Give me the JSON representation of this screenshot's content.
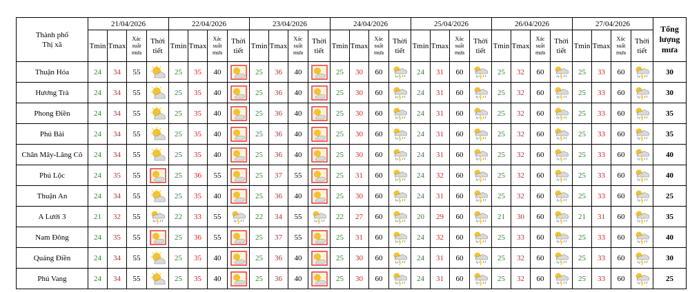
{
  "header": {
    "city_label_line1": "Thành phố",
    "city_label_line2": "Thị xã",
    "dates": [
      "21/04/2026",
      "22/04/2026",
      "23/04/2026",
      "24/04/2026",
      "25/04/2026",
      "26/04/2026",
      "27/04/2026"
    ],
    "tmin": "Tmin",
    "tmax": "Tmax",
    "prob_line1": "Xác",
    "prob_line2": "suất",
    "prob_line3": "mưa",
    "weather_line1": "Thời",
    "weather_line2": "tiết",
    "total_line1": "Tổng",
    "total_line2": "lượng",
    "total_line3": "mưa"
  },
  "colors": {
    "tmin": "#2e7d32",
    "tmax": "#c62828",
    "sun": "#f2c230",
    "cloud": "#d9d9d9",
    "hot": "#e53935"
  },
  "icon_names": {
    "sun-cloud": "partly-cloudy-icon",
    "hot": "hot-sun-icon",
    "storm": "thunderstorm-icon"
  },
  "rows": [
    {
      "city": "Thuận Hóa",
      "total": "30",
      "days": [
        {
          "tmin": "24",
          "tmax": "34",
          "prob": "55",
          "icon": "sun-cloud"
        },
        {
          "tmin": "25",
          "tmax": "35",
          "prob": "40",
          "icon": "hot"
        },
        {
          "tmin": "25",
          "tmax": "36",
          "prob": "40",
          "icon": "hot"
        },
        {
          "tmin": "25",
          "tmax": "30",
          "prob": "60",
          "icon": "storm"
        },
        {
          "tmin": "24",
          "tmax": "31",
          "prob": "60",
          "icon": "storm"
        },
        {
          "tmin": "25",
          "tmax": "32",
          "prob": "60",
          "icon": "storm"
        },
        {
          "tmin": "25",
          "tmax": "33",
          "prob": "60",
          "icon": "storm"
        }
      ]
    },
    {
      "city": "Hương Trà",
      "total": "30",
      "days": [
        {
          "tmin": "24",
          "tmax": "34",
          "prob": "55",
          "icon": "sun-cloud"
        },
        {
          "tmin": "25",
          "tmax": "35",
          "prob": "40",
          "icon": "hot"
        },
        {
          "tmin": "25",
          "tmax": "36",
          "prob": "40",
          "icon": "hot"
        },
        {
          "tmin": "25",
          "tmax": "30",
          "prob": "60",
          "icon": "storm"
        },
        {
          "tmin": "24",
          "tmax": "31",
          "prob": "60",
          "icon": "storm"
        },
        {
          "tmin": "25",
          "tmax": "32",
          "prob": "60",
          "icon": "storm"
        },
        {
          "tmin": "25",
          "tmax": "33",
          "prob": "60",
          "icon": "storm"
        }
      ]
    },
    {
      "city": "Phong Điền",
      "total": "35",
      "days": [
        {
          "tmin": "24",
          "tmax": "34",
          "prob": "55",
          "icon": "sun-cloud"
        },
        {
          "tmin": "25",
          "tmax": "35",
          "prob": "40",
          "icon": "hot"
        },
        {
          "tmin": "25",
          "tmax": "36",
          "prob": "40",
          "icon": "hot"
        },
        {
          "tmin": "25",
          "tmax": "30",
          "prob": "60",
          "icon": "storm"
        },
        {
          "tmin": "24",
          "tmax": "31",
          "prob": "60",
          "icon": "storm"
        },
        {
          "tmin": "25",
          "tmax": "32",
          "prob": "60",
          "icon": "storm"
        },
        {
          "tmin": "25",
          "tmax": "33",
          "prob": "60",
          "icon": "storm"
        }
      ]
    },
    {
      "city": "Phú Bài",
      "total": "35",
      "days": [
        {
          "tmin": "24",
          "tmax": "34",
          "prob": "55",
          "icon": "sun-cloud"
        },
        {
          "tmin": "25",
          "tmax": "35",
          "prob": "40",
          "icon": "hot"
        },
        {
          "tmin": "25",
          "tmax": "36",
          "prob": "40",
          "icon": "hot"
        },
        {
          "tmin": "25",
          "tmax": "30",
          "prob": "60",
          "icon": "storm"
        },
        {
          "tmin": "24",
          "tmax": "31",
          "prob": "60",
          "icon": "storm"
        },
        {
          "tmin": "25",
          "tmax": "32",
          "prob": "60",
          "icon": "storm"
        },
        {
          "tmin": "25",
          "tmax": "33",
          "prob": "60",
          "icon": "storm"
        }
      ]
    },
    {
      "city": "Chân Mây-Lăng Cô",
      "total": "40",
      "days": [
        {
          "tmin": "24",
          "tmax": "34",
          "prob": "55",
          "icon": "sun-cloud"
        },
        {
          "tmin": "25",
          "tmax": "35",
          "prob": "40",
          "icon": "hot"
        },
        {
          "tmin": "25",
          "tmax": "36",
          "prob": "40",
          "icon": "hot"
        },
        {
          "tmin": "25",
          "tmax": "30",
          "prob": "60",
          "icon": "storm"
        },
        {
          "tmin": "24",
          "tmax": "31",
          "prob": "60",
          "icon": "storm"
        },
        {
          "tmin": "25",
          "tmax": "32",
          "prob": "60",
          "icon": "storm"
        },
        {
          "tmin": "25",
          "tmax": "33",
          "prob": "60",
          "icon": "storm"
        }
      ]
    },
    {
      "city": "Phú Lộc",
      "total": "40",
      "days": [
        {
          "tmin": "24",
          "tmax": "35",
          "prob": "55",
          "icon": "hot"
        },
        {
          "tmin": "25",
          "tmax": "36",
          "prob": "55",
          "icon": "hot"
        },
        {
          "tmin": "25",
          "tmax": "37",
          "prob": "55",
          "icon": "hot"
        },
        {
          "tmin": "25",
          "tmax": "31",
          "prob": "60",
          "icon": "storm"
        },
        {
          "tmin": "24",
          "tmax": "32",
          "prob": "60",
          "icon": "storm"
        },
        {
          "tmin": "25",
          "tmax": "32",
          "prob": "60",
          "icon": "storm"
        },
        {
          "tmin": "25",
          "tmax": "33",
          "prob": "60",
          "icon": "storm"
        }
      ]
    },
    {
      "city": "Thuận An",
      "total": "25",
      "days": [
        {
          "tmin": "24",
          "tmax": "34",
          "prob": "55",
          "icon": "sun-cloud"
        },
        {
          "tmin": "25",
          "tmax": "35",
          "prob": "40",
          "icon": "hot"
        },
        {
          "tmin": "25",
          "tmax": "36",
          "prob": "40",
          "icon": "hot"
        },
        {
          "tmin": "25",
          "tmax": "30",
          "prob": "60",
          "icon": "storm"
        },
        {
          "tmin": "24",
          "tmax": "31",
          "prob": "60",
          "icon": "storm"
        },
        {
          "tmin": "25",
          "tmax": "32",
          "prob": "60",
          "icon": "storm"
        },
        {
          "tmin": "25",
          "tmax": "33",
          "prob": "60",
          "icon": "storm"
        }
      ]
    },
    {
      "city": "A Lưới 3",
      "total": "35",
      "days": [
        {
          "tmin": "21",
          "tmax": "32",
          "prob": "55",
          "icon": "storm"
        },
        {
          "tmin": "22",
          "tmax": "33",
          "prob": "55",
          "icon": "storm"
        },
        {
          "tmin": "22",
          "tmax": "34",
          "prob": "55",
          "icon": "storm"
        },
        {
          "tmin": "22",
          "tmax": "27",
          "prob": "60",
          "icon": "storm"
        },
        {
          "tmin": "20",
          "tmax": "29",
          "prob": "60",
          "icon": "storm"
        },
        {
          "tmin": "21",
          "tmax": "30",
          "prob": "60",
          "icon": "storm"
        },
        {
          "tmin": "21",
          "tmax": "31",
          "prob": "60",
          "icon": "storm"
        }
      ]
    },
    {
      "city": "Nam Đông",
      "total": "40",
      "days": [
        {
          "tmin": "24",
          "tmax": "35",
          "prob": "55",
          "icon": "hot"
        },
        {
          "tmin": "25",
          "tmax": "36",
          "prob": "55",
          "icon": "hot"
        },
        {
          "tmin": "25",
          "tmax": "37",
          "prob": "55",
          "icon": "hot"
        },
        {
          "tmin": "25",
          "tmax": "31",
          "prob": "60",
          "icon": "storm"
        },
        {
          "tmin": "24",
          "tmax": "32",
          "prob": "60",
          "icon": "storm"
        },
        {
          "tmin": "25",
          "tmax": "33",
          "prob": "60",
          "icon": "storm"
        },
        {
          "tmin": "25",
          "tmax": "33",
          "prob": "60",
          "icon": "storm"
        }
      ]
    },
    {
      "city": "Quảng Điền",
      "total": "30",
      "days": [
        {
          "tmin": "24",
          "tmax": "34",
          "prob": "55",
          "icon": "sun-cloud"
        },
        {
          "tmin": "25",
          "tmax": "35",
          "prob": "40",
          "icon": "hot"
        },
        {
          "tmin": "25",
          "tmax": "36",
          "prob": "40",
          "icon": "hot"
        },
        {
          "tmin": "25",
          "tmax": "30",
          "prob": "60",
          "icon": "storm"
        },
        {
          "tmin": "24",
          "tmax": "31",
          "prob": "60",
          "icon": "storm"
        },
        {
          "tmin": "25",
          "tmax": "32",
          "prob": "60",
          "icon": "storm"
        },
        {
          "tmin": "25",
          "tmax": "33",
          "prob": "60",
          "icon": "storm"
        }
      ]
    },
    {
      "city": "Phú Vang",
      "total": "25",
      "days": [
        {
          "tmin": "24",
          "tmax": "34",
          "prob": "55",
          "icon": "sun-cloud"
        },
        {
          "tmin": "25",
          "tmax": "35",
          "prob": "40",
          "icon": "hot"
        },
        {
          "tmin": "25",
          "tmax": "36",
          "prob": "40",
          "icon": "hot"
        },
        {
          "tmin": "25",
          "tmax": "30",
          "prob": "60",
          "icon": "storm"
        },
        {
          "tmin": "24",
          "tmax": "31",
          "prob": "60",
          "icon": "storm"
        },
        {
          "tmin": "25",
          "tmax": "32",
          "prob": "60",
          "icon": "storm"
        },
        {
          "tmin": "25",
          "tmax": "33",
          "prob": "60",
          "icon": "storm"
        }
      ]
    }
  ]
}
